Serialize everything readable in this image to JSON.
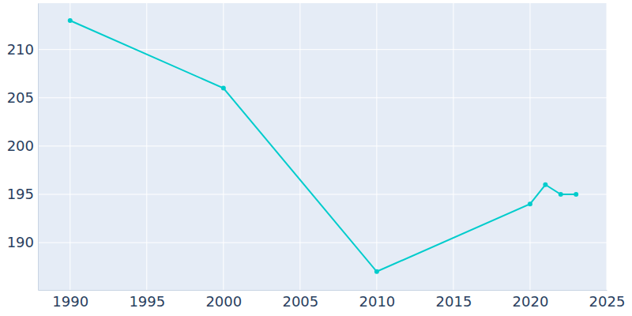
{
  "chart_data": {
    "type": "line",
    "x": [
      1990,
      2000,
      2010,
      2020,
      2021,
      2022,
      2023
    ],
    "values": [
      213,
      206,
      187,
      194,
      196,
      195,
      195
    ],
    "color": "#00cccc",
    "marker": "circle",
    "xlim": [
      1987.9,
      2025
    ],
    "ylim": [
      185.1,
      214.8
    ],
    "xticks": [
      1990,
      1995,
      2000,
      2005,
      2010,
      2015,
      2020,
      2025
    ],
    "yticks": [
      190,
      195,
      200,
      205,
      210
    ],
    "grid": true
  }
}
